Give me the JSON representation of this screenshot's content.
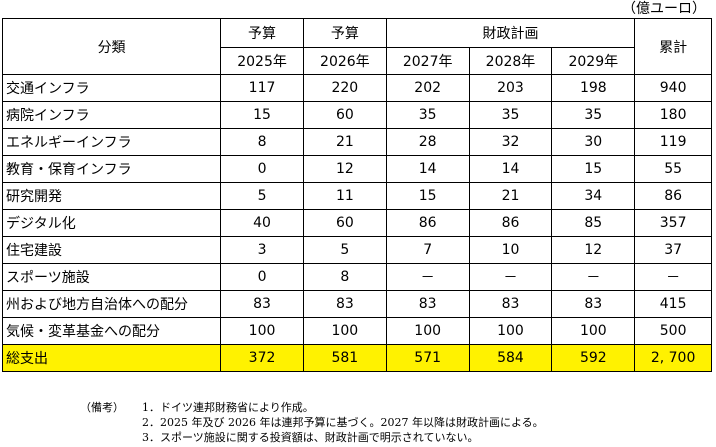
{
  "unit": "（億ユーロ）",
  "header": {
    "category": "分類",
    "budget_label_1": "予算",
    "budget_label_2": "予算",
    "plan_label": "財政計画",
    "total_label": "累計",
    "years": [
      "2025年",
      "2026年",
      "2027年",
      "2028年",
      "2029年"
    ]
  },
  "rows": [
    {
      "name": "交通インフラ",
      "values": [
        "117",
        "220",
        "202",
        "203",
        "198"
      ],
      "total": "940"
    },
    {
      "name": "病院インフラ",
      "values": [
        "15",
        "60",
        "35",
        "35",
        "35"
      ],
      "total": "180"
    },
    {
      "name": "エネルギーインフラ",
      "values": [
        "8",
        "21",
        "28",
        "32",
        "30"
      ],
      "total": "119"
    },
    {
      "name": "教育・保育インフラ",
      "values": [
        "0",
        "12",
        "14",
        "14",
        "15"
      ],
      "total": "55"
    },
    {
      "name": "研究開発",
      "values": [
        "5",
        "11",
        "15",
        "21",
        "34"
      ],
      "total": "86"
    },
    {
      "name": "デジタル化",
      "values": [
        "40",
        "60",
        "86",
        "86",
        "85"
      ],
      "total": "357"
    },
    {
      "name": "住宅建設",
      "values": [
        "3",
        "5",
        "7",
        "10",
        "12"
      ],
      "total": "37"
    },
    {
      "name": "スポーツ施設",
      "values": [
        "0",
        "8",
        "－",
        "－",
        "－"
      ],
      "total": "－"
    },
    {
      "name": "州および地方自治体への配分",
      "values": [
        "83",
        "83",
        "83",
        "83",
        "83"
      ],
      "total": "415"
    },
    {
      "name": "気候・変革基金への配分",
      "values": [
        "100",
        "100",
        "100",
        "100",
        "100"
      ],
      "total": "500"
    }
  ],
  "total_row": {
    "name": "総支出",
    "values": [
      "372",
      "581",
      "571",
      "584",
      "592"
    ],
    "total": "2, 700"
  },
  "highlight_color": "#fff200",
  "notes": {
    "label": "（備考）",
    "items": [
      "1．ドイツ連邦財務省により作成。",
      "2．2025 年及び 2026 年は連邦予算に基づく。2027 年以降は財政計画による。",
      "3．スポーツ施設に関する投資額は、財政計画で明示されていない。"
    ]
  }
}
